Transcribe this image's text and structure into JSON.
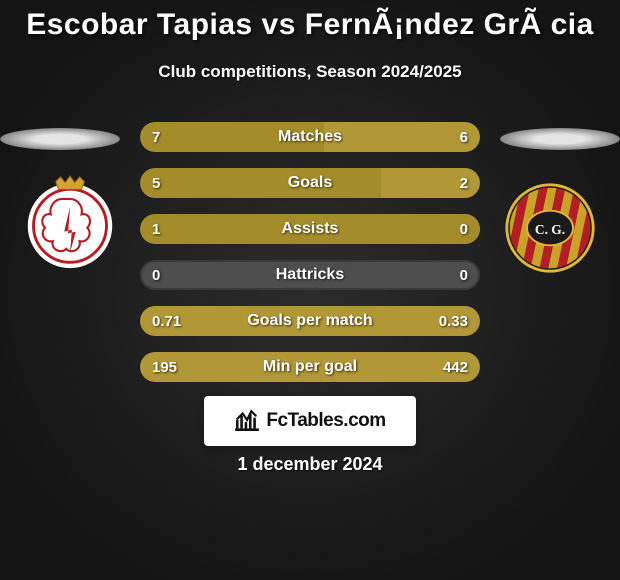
{
  "title": "Escobar Tapias vs FernÃ¡ndez GrÃ cia",
  "title_fontsize": 30,
  "subtitle": "Club competitions, Season 2024/2025",
  "subtitle_fontsize": 17,
  "background": {
    "gradient_start": "#141414",
    "gradient_end": "#2c2c2c"
  },
  "platform_left_color": "#e4e4e4",
  "platform_right_color": "#e4e4e4",
  "badge_left": {
    "outer_color": "#ffffff",
    "inner_color": "#b31d24",
    "crown_color": "#d4a233"
  },
  "badge_right": {
    "outer_color": "#1a1a1a",
    "ring_color": "#e2b63a",
    "stripe1": "#c9a227",
    "stripe2": "#b31d24",
    "center_text": "C. G.",
    "center_bg": "#1a1a1a"
  },
  "bars": {
    "track_color": "#4d4d4d",
    "fill_color": "#a48c2a",
    "fill_color_alt": "#b19735",
    "label_fontsize": 16,
    "value_fontsize": 15,
    "rows": [
      {
        "label": "Matches",
        "left": "7",
        "right": "6",
        "left_pct": 54,
        "right_pct": 46,
        "mode": "split"
      },
      {
        "label": "Goals",
        "left": "5",
        "right": "2",
        "left_pct": 71,
        "right_pct": 29,
        "mode": "split"
      },
      {
        "label": "Assists",
        "left": "1",
        "right": "0",
        "left_pct": 100,
        "right_pct": 0,
        "mode": "split"
      },
      {
        "label": "Hattricks",
        "left": "0",
        "right": "0",
        "left_pct": 0,
        "right_pct": 0,
        "mode": "none"
      },
      {
        "label": "Goals per match",
        "left": "0.71",
        "right": "0.33",
        "left_pct": 100,
        "right_pct": 0,
        "mode": "full"
      },
      {
        "label": "Min per goal",
        "left": "195",
        "right": "442",
        "left_pct": 100,
        "right_pct": 0,
        "mode": "full"
      }
    ]
  },
  "brand": {
    "text": "FcTables.com",
    "icon_color": "#111111",
    "box_bg": "#ffffff"
  },
  "date": "1 december 2024"
}
